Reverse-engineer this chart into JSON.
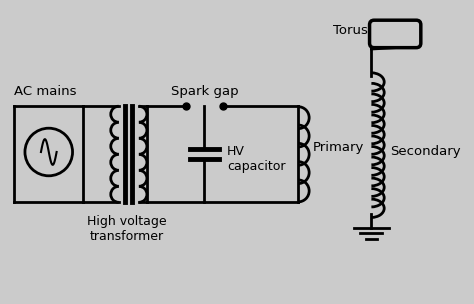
{
  "background_color": "#cbcbcb",
  "line_color": "#000000",
  "line_width": 2.0,
  "labels": {
    "ac_mains": "AC mains",
    "hv_transformer": "High voltage\ntransformer",
    "spark_gap": "Spark gap",
    "primary": "Primary",
    "hv_capacitor": "HV\ncapacitor",
    "secondary": "Secondary",
    "torus": "Torus"
  },
  "font_size": 9.5
}
